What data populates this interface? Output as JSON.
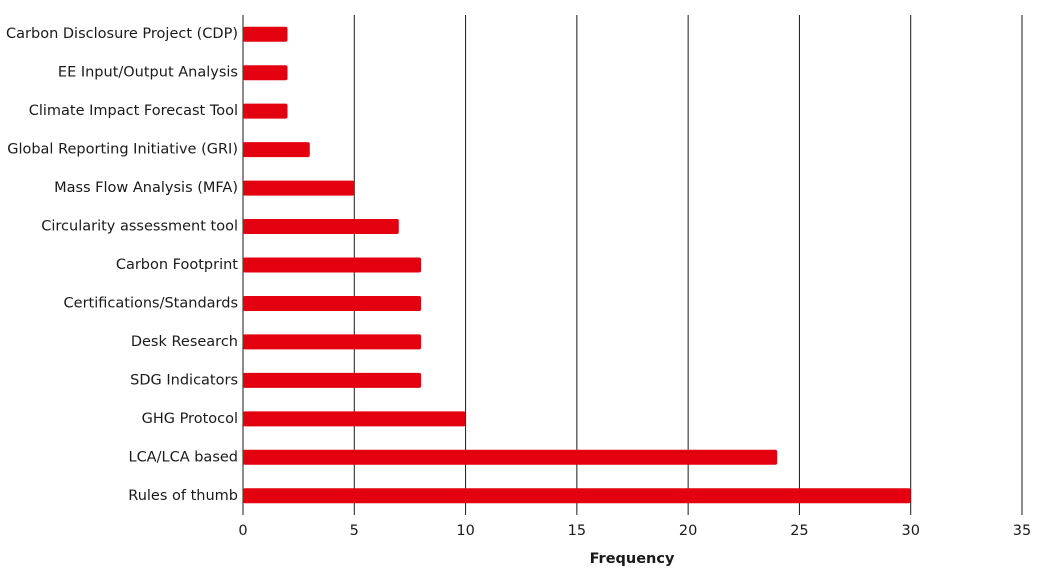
{
  "chart_data": {
    "type": "bar",
    "orientation": "horizontal",
    "categories": [
      "Carbon Disclosure Project (CDP)",
      "EE Input/Output Analysis",
      "Climate Impact Forecast Tool",
      "Global Reporting Initiative (GRI)",
      "Mass Flow Analysis (MFA)",
      "Circularity assessment tool",
      "Carbon Footprint",
      "Certifications/Standards",
      "Desk Research",
      "SDG Indicators",
      "GHG Protocol",
      "LCA/LCA based",
      "Rules of thumb"
    ],
    "values": [
      2,
      2,
      2,
      3,
      5,
      7,
      8,
      8,
      8,
      8,
      10,
      24,
      30
    ],
    "color": "#e3000f",
    "xlabel": "Frequency",
    "xlim": [
      0,
      35
    ],
    "xticks": [
      0,
      5,
      10,
      15,
      20,
      25,
      30,
      35
    ],
    "grid": true
  }
}
